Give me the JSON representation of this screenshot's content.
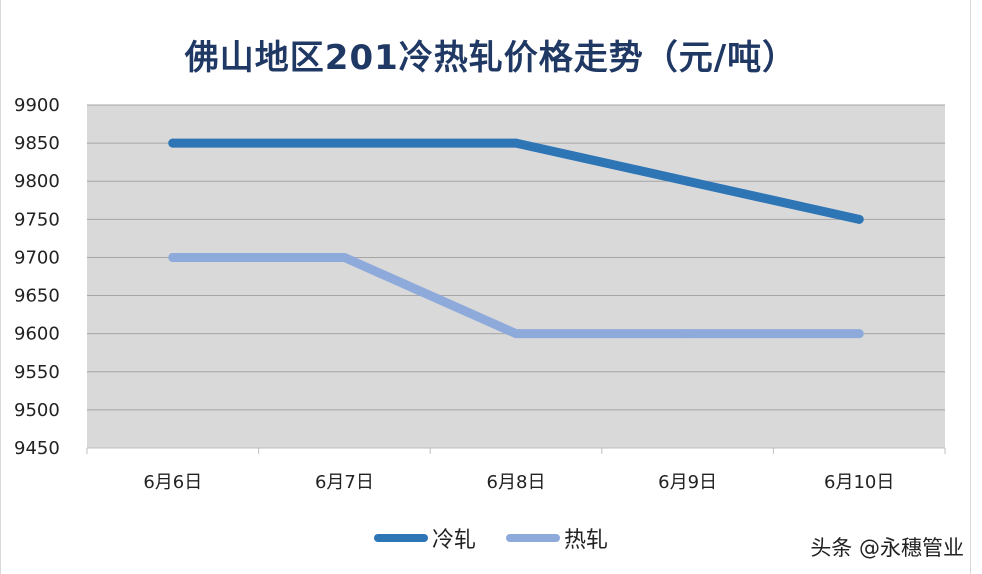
{
  "chart_data": {
    "type": "line",
    "title": "佛山地区201冷热轧价格走势（元/吨）",
    "categories": [
      "6月6日",
      "6月7日",
      "6月8日",
      "6月9日",
      "6月10日"
    ],
    "series": [
      {
        "name": "冷轧",
        "values": [
          9850,
          9850,
          9850,
          9800,
          9750
        ],
        "color": "#2e75b6"
      },
      {
        "name": "热轧",
        "values": [
          9700,
          9700,
          9600,
          9600,
          9600
        ],
        "color": "#8eaadb"
      }
    ],
    "yticks": [
      9450,
      9500,
      9550,
      9600,
      9650,
      9700,
      9750,
      9800,
      9850,
      9900
    ],
    "ylim": [
      9450,
      9900
    ],
    "grid": true,
    "legend_position": "bottom",
    "plot_background": "#d9d9d9"
  },
  "watermark": "头条 @永穗管业"
}
